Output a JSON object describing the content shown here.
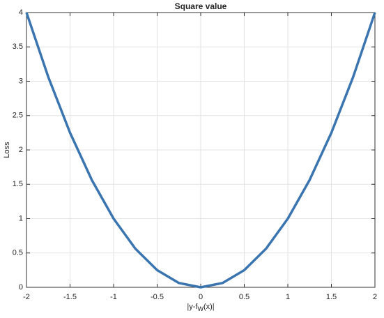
{
  "chart_data": {
    "type": "line",
    "title": "Square value",
    "xlabel": [
      "|y-f",
      "W",
      "(x)|"
    ],
    "ylabel": "Loss",
    "x": [
      -2,
      -1.75,
      -1.5,
      -1.25,
      -1,
      -0.75,
      -0.5,
      -0.25,
      0,
      0.25,
      0.5,
      0.75,
      1,
      1.25,
      1.5,
      1.75,
      2
    ],
    "series": [
      {
        "name": "Loss",
        "color": "#3a75b0",
        "values": [
          4,
          3.0625,
          2.25,
          1.5625,
          1,
          0.5625,
          0.25,
          0.0625,
          0,
          0.0625,
          0.25,
          0.5625,
          1,
          1.5625,
          2.25,
          3.0625,
          4
        ]
      }
    ],
    "xlim": [
      -2,
      2
    ],
    "xticks": [
      -2,
      -1.5,
      -1,
      -0.5,
      0,
      0.5,
      1,
      1.5,
      2
    ],
    "ylim": [
      0,
      4
    ],
    "yticks": [
      0,
      0.5,
      1,
      1.5,
      2,
      2.5,
      3,
      3.5,
      4
    ],
    "grid": true
  }
}
